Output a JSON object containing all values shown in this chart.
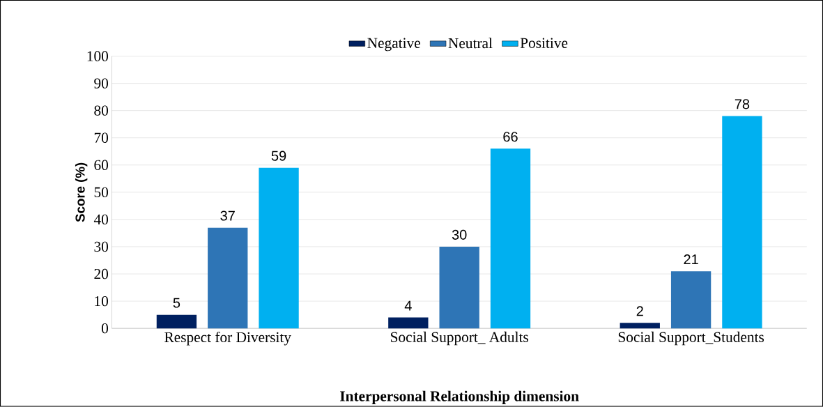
{
  "chart_data": {
    "type": "bar",
    "xlabel": "Interpersonal Relationship dimension",
    "ylabel": "Score (%)",
    "categories": [
      "Respect for Diversity",
      "Social Support_ Adults",
      "Social Support_Students"
    ],
    "series": [
      {
        "name": "Negative",
        "color": "#002060",
        "values": [
          5,
          4,
          2
        ]
      },
      {
        "name": "Neutral",
        "color": "#2e75b6",
        "values": [
          37,
          30,
          21
        ]
      },
      {
        "name": "Positive",
        "color": "#00b0f0",
        "values": [
          59,
          66,
          78
        ]
      }
    ],
    "ylim": [
      0,
      100
    ],
    "yticks": [
      0,
      10,
      20,
      30,
      40,
      50,
      60,
      70,
      80,
      90,
      100
    ],
    "grid": "y",
    "legend": "top",
    "data_labels": true
  }
}
